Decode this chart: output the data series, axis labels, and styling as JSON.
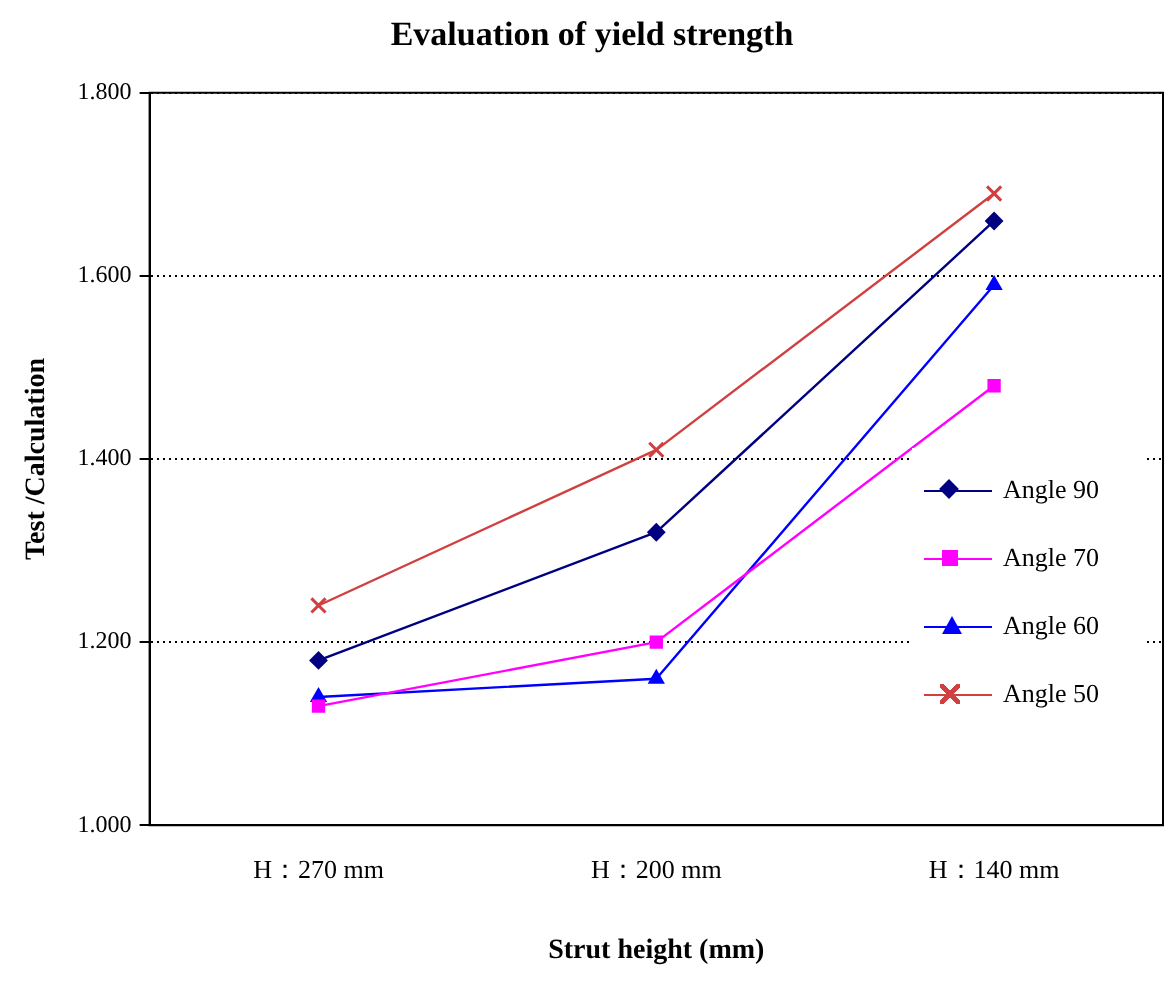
{
  "chart_data": {
    "type": "line",
    "title": "Evaluation of yield strength",
    "xlabel": "Strut height (mm)",
    "ylabel": "Test /Calculation",
    "categories": [
      "H：270 mm",
      "H：200 mm",
      "H：140 mm"
    ],
    "series": [
      {
        "name": "Angle 90",
        "color": "#000080",
        "marker": "diamond",
        "values": [
          1.18,
          1.32,
          1.66
        ]
      },
      {
        "name": "Angle 70",
        "color": "#ff00ff",
        "marker": "square",
        "values": [
          1.13,
          1.2,
          1.48
        ]
      },
      {
        "name": "Angle 60",
        "color": "#0000ff",
        "marker": "triangle",
        "values": [
          1.14,
          1.16,
          1.59
        ]
      },
      {
        "name": "Angle 50",
        "color": "#d04040",
        "marker": "cross",
        "values": [
          1.24,
          1.41,
          1.69
        ]
      }
    ],
    "ylim": [
      1,
      1.8
    ],
    "yticks": [
      {
        "value": 1,
        "label": "1.000"
      },
      {
        "value": 1.2,
        "label": "1.200"
      },
      {
        "value": 1.4,
        "label": "1.400"
      },
      {
        "value": 1.6,
        "label": "1.600"
      },
      {
        "value": 1.8,
        "label": "1.800"
      }
    ],
    "grid": "y",
    "legend": "right",
    "line_style": "solid"
  }
}
